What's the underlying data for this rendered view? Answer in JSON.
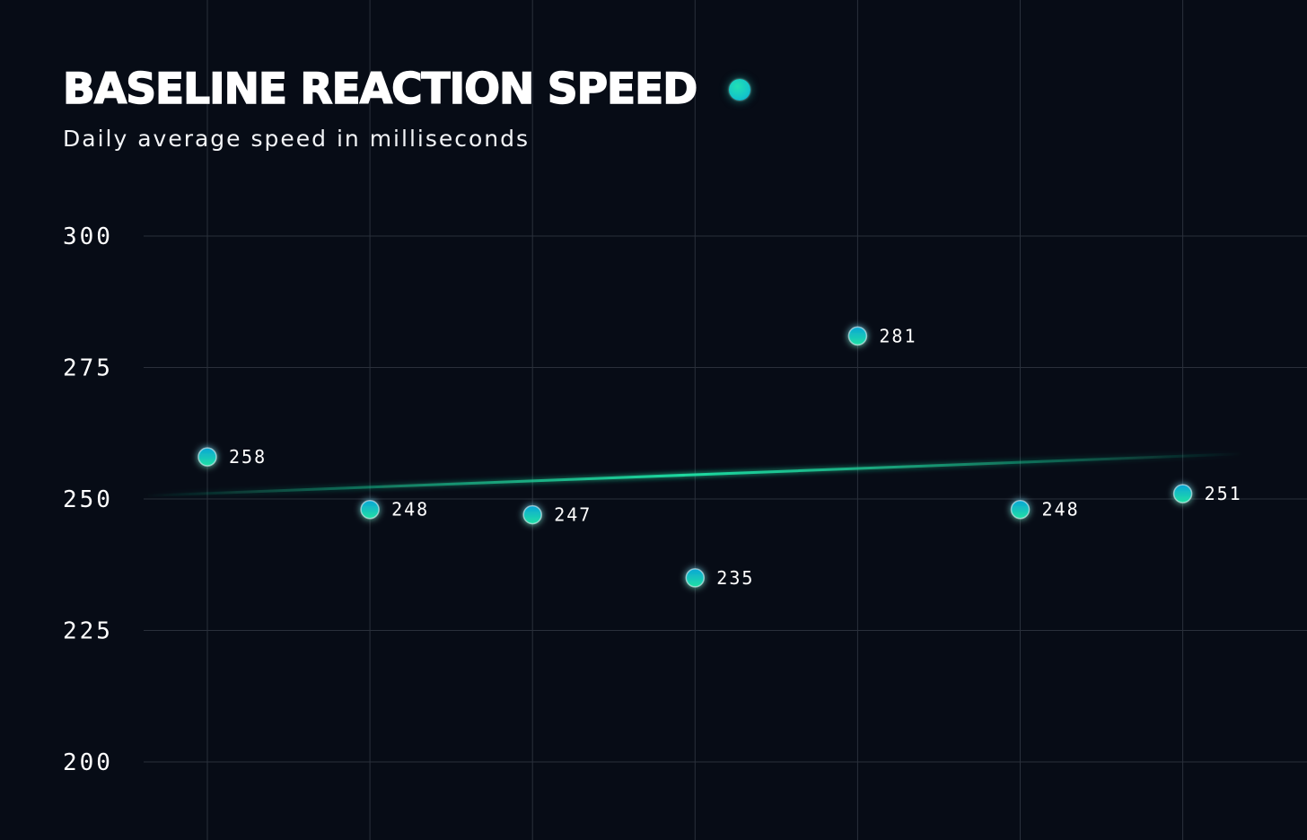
{
  "header": {
    "title": "BASELINE REACTION SPEED",
    "subtitle": "Daily average speed in milliseconds"
  },
  "colors": {
    "background": "#070c16",
    "grid": "#2a303b",
    "point_start": "#0aa6d6",
    "point_end": "#22e0a4",
    "trend_line": "#1fd9a0",
    "text": "#ffffff"
  },
  "chart_data": {
    "type": "scatter",
    "title": "BASELINE REACTION SPEED",
    "subtitle": "Daily average speed in milliseconds",
    "xlabel": "",
    "ylabel": "",
    "ylim": [
      200,
      300
    ],
    "yticks": [
      300,
      275,
      250,
      225,
      200
    ],
    "grid": true,
    "series": [
      {
        "x": [
          1,
          2,
          3,
          4,
          5,
          6,
          7
        ],
        "values": [
          258,
          248,
          247,
          235,
          281,
          248,
          251
        ],
        "labels": [
          "258",
          "248",
          "247",
          "235",
          "281",
          "248",
          "251"
        ]
      }
    ],
    "trend_line": {
      "start": 250.6,
      "end": 258.6
    }
  }
}
